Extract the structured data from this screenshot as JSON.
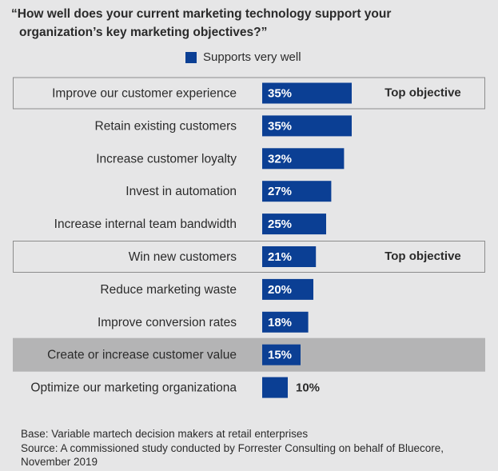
{
  "title_line1": "“How well does your current marketing technology support your",
  "title_line2": "organization’s key marketing objectives?”",
  "colors": {
    "bar": "#0b3f94",
    "background": "#e6e6e7",
    "highlight_box_border": "#8c8c8c",
    "shaded_row": "#b4b4b5"
  },
  "footer": {
    "base": "Base: Variable martech decision makers at retail enterprises",
    "source_line1": "Source: A commissioned study conducted by Forrester Consulting on behalf of Bluecore,",
    "source_line2": "November 2019"
  },
  "chart_data": {
    "type": "bar",
    "orientation": "horizontal",
    "categories": [
      "Improve our customer experience",
      "Retain existing customers",
      "Increase customer loyalty",
      "Invest in automation",
      "Increase internal team bandwidth",
      "Win new customers",
      "Reduce marketing waste",
      "Improve conversion rates",
      "Create or increase customer value",
      "Optimize our marketing organizationa"
    ],
    "series": [
      {
        "name": "Supports very well",
        "values": [
          35,
          35,
          32,
          27,
          25,
          21,
          20,
          18,
          15,
          10
        ]
      }
    ],
    "value_labels": [
      "35%",
      "35%",
      "32%",
      "27%",
      "25%",
      "21%",
      "20%",
      "18%",
      "15%",
      "10%"
    ],
    "value_label_position": [
      "inside",
      "inside",
      "inside",
      "inside",
      "inside",
      "inside",
      "inside",
      "inside",
      "inside",
      "outside"
    ],
    "annotations": [
      {
        "category": "Improve our customer experience",
        "text": "Top objective",
        "style": "outlined-box"
      },
      {
        "category": "Win new customers",
        "text": "Top objective",
        "style": "outlined-box"
      },
      {
        "category": "Create or increase customer value",
        "text": "",
        "style": "shaded-row"
      }
    ],
    "legend_position": "top",
    "grid": false
  }
}
